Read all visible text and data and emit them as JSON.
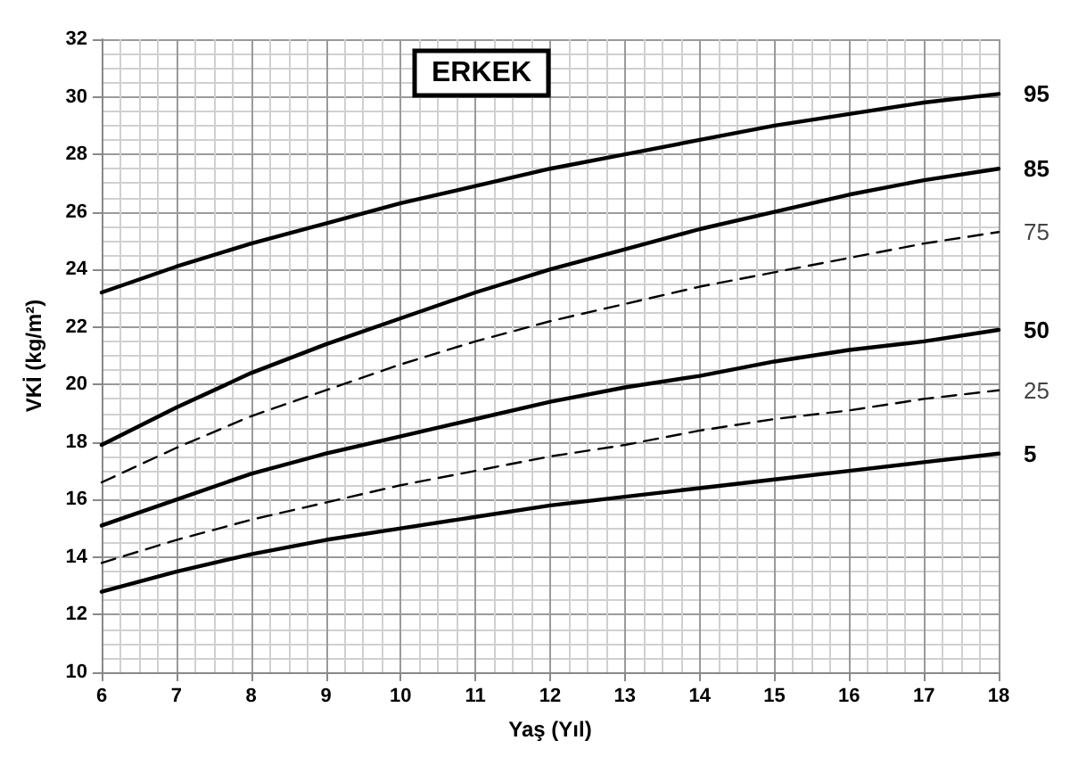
{
  "chart_data": {
    "type": "line",
    "title": "ERKEK",
    "xlabel": "Yaş (Yıl)",
    "ylabel": "VKİ (kg/m²)",
    "x": [
      6,
      7,
      8,
      9,
      10,
      11,
      12,
      13,
      14,
      15,
      16,
      17,
      18
    ],
    "xlim": [
      6,
      18
    ],
    "xticks": [
      6,
      7,
      8,
      9,
      10,
      11,
      12,
      13,
      14,
      15,
      16,
      17,
      18
    ],
    "ylim": [
      10,
      32
    ],
    "yticks": [
      10,
      12,
      14,
      16,
      18,
      20,
      22,
      24,
      26,
      28,
      30,
      32
    ],
    "grid": true,
    "legend": false,
    "marker": "none",
    "series": [
      {
        "name": "95",
        "color": "#000000",
        "line_style": "solid",
        "values": [
          23.2,
          24.1,
          24.9,
          25.6,
          26.3,
          26.9,
          27.5,
          28.0,
          28.5,
          29.0,
          29.4,
          29.8,
          30.1
        ]
      },
      {
        "name": "85",
        "color": "#000000",
        "line_style": "solid",
        "values": [
          17.9,
          19.2,
          20.4,
          21.4,
          22.3,
          23.2,
          24.0,
          24.7,
          25.4,
          26.0,
          26.6,
          27.1,
          27.5
        ]
      },
      {
        "name": "75",
        "color": "#000000",
        "line_style": "dashed",
        "values": [
          16.6,
          17.8,
          18.9,
          19.8,
          20.7,
          21.5,
          22.2,
          22.8,
          23.4,
          23.9,
          24.4,
          24.9,
          25.3
        ]
      },
      {
        "name": "50",
        "color": "#000000",
        "line_style": "solid",
        "values": [
          15.1,
          16.0,
          16.9,
          17.6,
          18.2,
          18.8,
          19.4,
          19.9,
          20.3,
          20.8,
          21.2,
          21.5,
          21.9
        ]
      },
      {
        "name": "25",
        "color": "#000000",
        "line_style": "dashed",
        "values": [
          13.8,
          14.6,
          15.3,
          15.9,
          16.5,
          17.0,
          17.5,
          17.9,
          18.4,
          18.8,
          19.1,
          19.5,
          19.8
        ]
      },
      {
        "name": "5",
        "color": "#000000",
        "line_style": "solid",
        "values": [
          12.8,
          13.5,
          14.1,
          14.6,
          15.0,
          15.4,
          15.8,
          16.1,
          16.4,
          16.7,
          17.0,
          17.3,
          17.6
        ]
      }
    ]
  }
}
